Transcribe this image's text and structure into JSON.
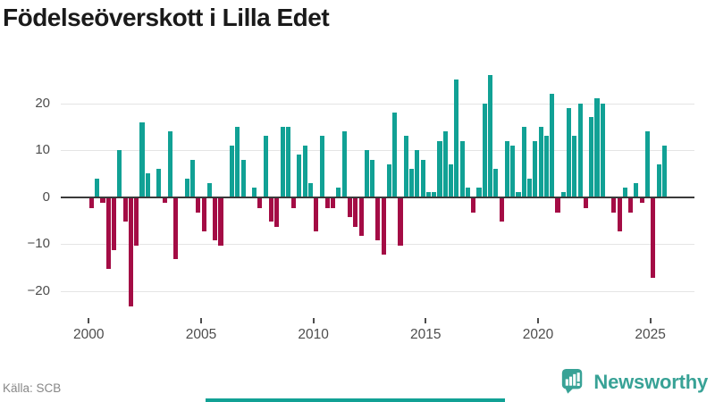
{
  "title": "Födelseöverskott i Lilla Edet",
  "footer": {
    "source": "Källa: SCB",
    "brand": "Newsworthy"
  },
  "colors": {
    "positive": "#11a195",
    "negative": "#a40c45",
    "grid": "#e4e4e4",
    "zero_line": "#3a3a3a",
    "axis_text": "#4d4d4d",
    "title_text": "#1a1a1a",
    "source_text": "#878787",
    "brand": "#38a296",
    "accent_bar": "#11a195"
  },
  "chart_data": {
    "type": "bar",
    "title": "Födelseöverskott i Lilla Edet",
    "x_unit": "quarter",
    "start_year": 2000,
    "start_quarter": 1,
    "end_year": 2025,
    "end_quarter": 3,
    "values": [
      -2,
      4,
      -1,
      -15,
      -11,
      10,
      -5,
      -23,
      -10,
      16,
      5,
      0,
      6,
      -1,
      14,
      -13,
      0,
      4,
      8,
      -3,
      -7,
      3,
      -9,
      -10,
      0,
      11,
      15,
      8,
      0,
      2,
      -2,
      13,
      -5,
      -6,
      15,
      15,
      -2,
      9,
      11,
      3,
      -7,
      13,
      -2,
      -2,
      2,
      14,
      -4,
      -6,
      -8,
      10,
      8,
      -9,
      -12,
      7,
      18,
      -10,
      13,
      6,
      10,
      8,
      1,
      1,
      12,
      14,
      7,
      25,
      12,
      2,
      -3,
      2,
      20,
      26,
      6,
      -5,
      12,
      11,
      1,
      15,
      4,
      12,
      15,
      13,
      22,
      -3,
      1,
      19,
      13,
      20,
      -2,
      17,
      21,
      20,
      0,
      -3,
      -7,
      2,
      -3,
      3,
      -1,
      14,
      -17,
      7,
      11
    ],
    "x_tick_years": [
      2000,
      2005,
      2010,
      2015,
      2020,
      2025
    ],
    "y_ticks": [
      {
        "value": 20,
        "label": "20"
      },
      {
        "value": 10,
        "label": "10"
      },
      {
        "value": 0,
        "label": "0"
      },
      {
        "value": -10,
        "label": "−10"
      },
      {
        "value": -20,
        "label": "−20"
      }
    ],
    "ylim": [
      -24,
      27
    ],
    "grid": true,
    "legend": false,
    "source": "Källa: SCB"
  }
}
